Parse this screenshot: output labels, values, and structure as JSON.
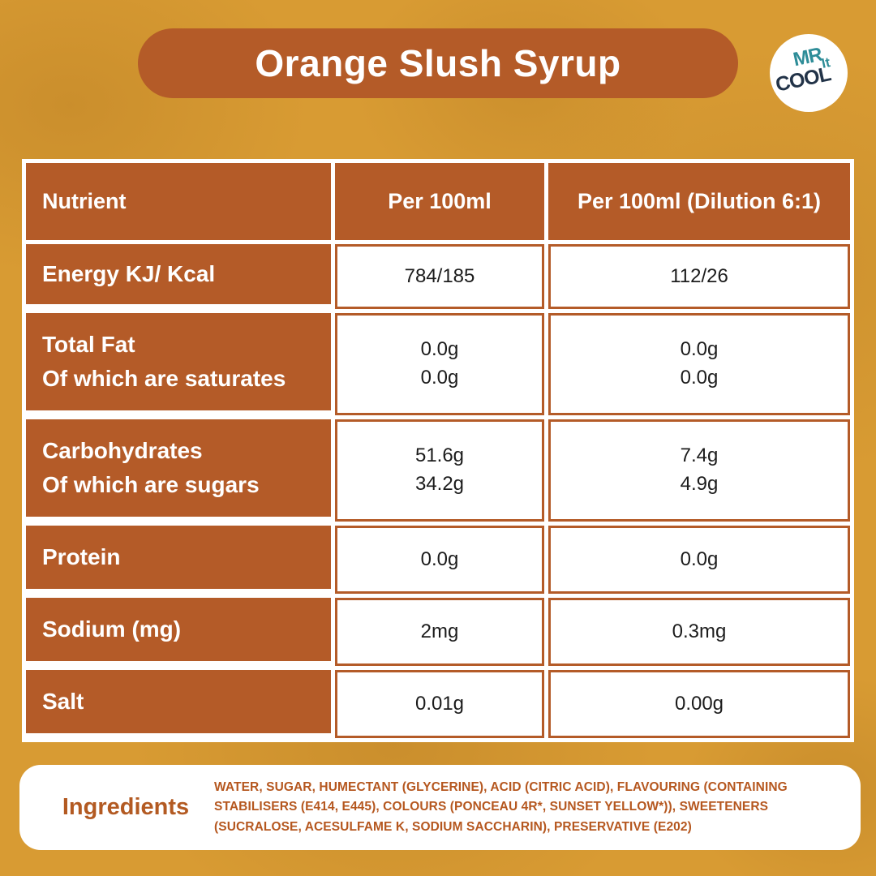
{
  "title": "Orange Slush Syrup",
  "logo": {
    "word_mr": "MR",
    "word_cool": "COOL",
    "word_it": "It"
  },
  "colors": {
    "accent_terracotta": "#b45b28",
    "background_mustard": "#d89b33",
    "logo_teal": "#2e8d98",
    "logo_navy": "#223348",
    "ingredients_text": "#b5571f",
    "value_text": "#1c1c1c"
  },
  "table": {
    "headers": [
      "Nutrient",
      "Per 100ml",
      "Per 100ml (Dilution 6:1)"
    ],
    "rows": [
      {
        "label": [
          "Energy KJ/ Kcal"
        ],
        "per100ml": [
          "784/185"
        ],
        "diluted": [
          "112/26"
        ]
      },
      {
        "label": [
          "Total Fat",
          "Of which are saturates"
        ],
        "per100ml": [
          "0.0g",
          "0.0g"
        ],
        "diluted": [
          "0.0g",
          "0.0g"
        ]
      },
      {
        "label": [
          "Carbohydrates",
          "Of which are sugars"
        ],
        "per100ml": [
          "51.6g",
          "34.2g"
        ],
        "diluted": [
          "7.4g",
          "4.9g"
        ]
      },
      {
        "label": [
          "Protein"
        ],
        "per100ml": [
          "0.0g"
        ],
        "diluted": [
          "0.0g"
        ]
      },
      {
        "label": [
          "Sodium (mg)"
        ],
        "per100ml": [
          "2mg"
        ],
        "diluted": [
          "0.3mg"
        ]
      },
      {
        "label": [
          "Salt"
        ],
        "per100ml": [
          "0.01g"
        ],
        "diluted": [
          "0.00g"
        ]
      }
    ]
  },
  "ingredients": {
    "label": "Ingredients",
    "text": "WATER, SUGAR, HUMECTANT (GLYCERINE), ACID (CITRIC ACID), FLAVOURING (CONTAINING STABILISERS (E414, E445), COLOURS (PONCEAU 4R*, SUNSET YELLOW*)), SWEETENERS (SUCRALOSE, ACESULFAME K, SODIUM SACCHARIN), PRESERVATIVE (E202)"
  }
}
